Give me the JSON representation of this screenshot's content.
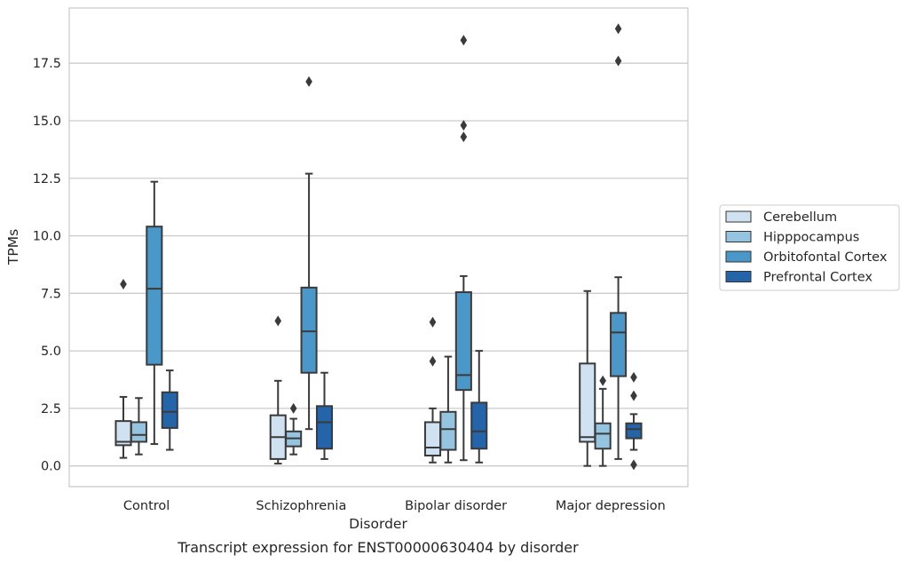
{
  "chart_data": {
    "type": "box",
    "title": "",
    "xlabel": "Disorder",
    "ylabel": "TPMs",
    "caption": "Transcript expression for ENST00000630404 by disorder",
    "ylim": [
      -0.9,
      19.9
    ],
    "yticks": [
      0.0,
      2.5,
      5.0,
      7.5,
      10.0,
      12.5,
      15.0,
      17.5
    ],
    "ytick_labels": [
      "0.0",
      "2.5",
      "5.0",
      "7.5",
      "10.0",
      "12.5",
      "15.0",
      "17.5"
    ],
    "grid": "horizontal",
    "legend_position": "right",
    "categories": [
      "Control",
      "Schizophrenia",
      "Bipolar disorder",
      "Major depression"
    ],
    "series": [
      {
        "name": "Cerebellum",
        "color": "#d0e1f2",
        "boxes": [
          {
            "whislo": 0.35,
            "q1": 0.9,
            "med": 1.05,
            "q3": 1.95,
            "whishi": 3.0,
            "fliers": [
              7.9
            ]
          },
          {
            "whislo": 0.1,
            "q1": 0.3,
            "med": 1.25,
            "q3": 2.2,
            "whishi": 3.7,
            "fliers": [
              6.3
            ]
          },
          {
            "whislo": 0.15,
            "q1": 0.45,
            "med": 0.8,
            "q3": 1.9,
            "whishi": 2.5,
            "fliers": [
              4.55,
              6.25
            ]
          },
          {
            "whislo": 0.0,
            "q1": 1.05,
            "med": 1.25,
            "q3": 4.45,
            "whishi": 7.6,
            "fliers": []
          }
        ]
      },
      {
        "name": "Hipppocampus",
        "color": "#94c4df",
        "boxes": [
          {
            "whislo": 0.5,
            "q1": 1.05,
            "med": 1.35,
            "q3": 1.9,
            "whishi": 2.95,
            "fliers": []
          },
          {
            "whislo": 0.5,
            "q1": 0.85,
            "med": 1.2,
            "q3": 1.5,
            "whishi": 2.05,
            "fliers": [
              2.5
            ]
          },
          {
            "whislo": 0.15,
            "q1": 0.7,
            "med": 1.6,
            "q3": 2.35,
            "whishi": 4.75,
            "fliers": []
          },
          {
            "whislo": 0.0,
            "q1": 0.75,
            "med": 1.4,
            "q3": 1.85,
            "whishi": 3.35,
            "fliers": [
              3.7
            ]
          }
        ]
      },
      {
        "name": "Orbitofontal Cortex",
        "color": "#4a98c9",
        "boxes": [
          {
            "whislo": 0.95,
            "q1": 4.4,
            "med": 7.7,
            "q3": 10.4,
            "whishi": 12.35,
            "fliers": []
          },
          {
            "whislo": 1.6,
            "q1": 4.05,
            "med": 5.85,
            "q3": 7.75,
            "whishi": 12.7,
            "fliers": [
              16.7
            ]
          },
          {
            "whislo": 0.25,
            "q1": 3.3,
            "med": 3.95,
            "q3": 7.55,
            "whishi": 8.25,
            "fliers": [
              14.3,
              14.8,
              18.5
            ]
          },
          {
            "whislo": 0.3,
            "q1": 3.9,
            "med": 5.8,
            "q3": 6.65,
            "whishi": 8.2,
            "fliers": [
              17.6,
              19.0
            ]
          }
        ]
      },
      {
        "name": "Prefrontal Cortex",
        "color": "#2464a8",
        "boxes": [
          {
            "whislo": 0.7,
            "q1": 1.65,
            "med": 2.35,
            "q3": 3.2,
            "whishi": 4.15,
            "fliers": []
          },
          {
            "whislo": 0.3,
            "q1": 0.75,
            "med": 1.9,
            "q3": 2.6,
            "whishi": 4.05,
            "fliers": []
          },
          {
            "whislo": 0.15,
            "q1": 0.75,
            "med": 1.5,
            "q3": 2.75,
            "whishi": 5.0,
            "fliers": []
          },
          {
            "whislo": 0.7,
            "q1": 1.2,
            "med": 1.6,
            "q3": 1.85,
            "whishi": 2.25,
            "fliers": [
              0.05,
              3.05,
              3.85
            ]
          }
        ]
      }
    ]
  }
}
